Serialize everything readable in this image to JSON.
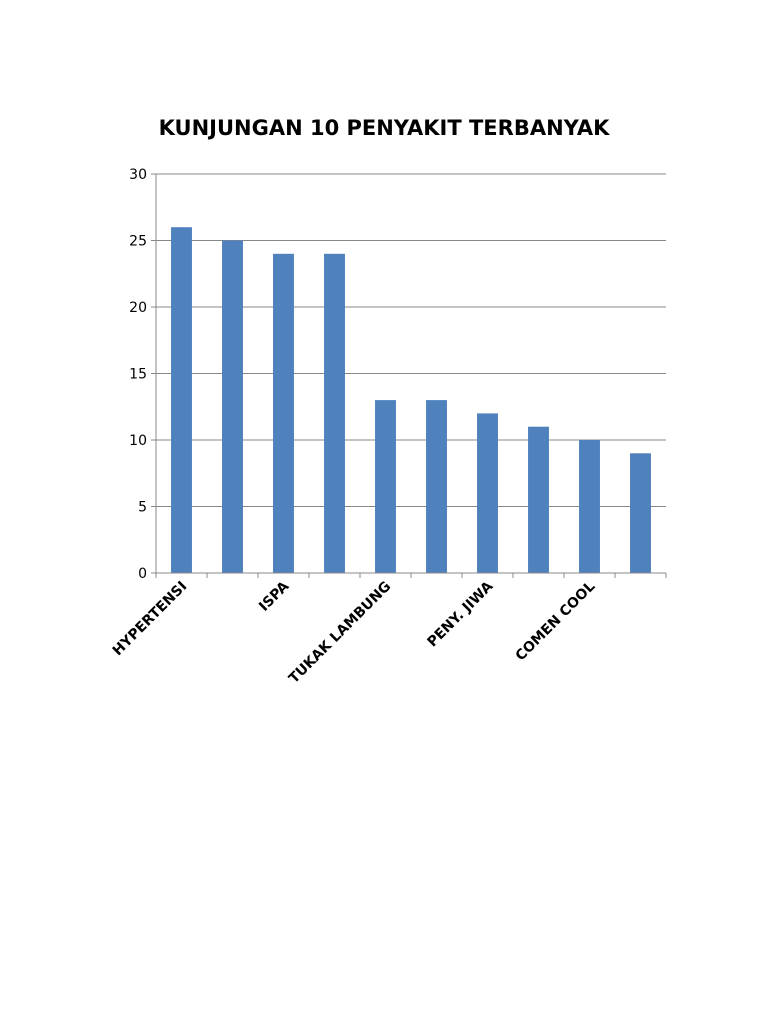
{
  "chart_data": {
    "type": "bar",
    "title": "KUNJUNGAN 10 PENYAKIT TERBANYAK",
    "xlabel": "",
    "ylabel": "",
    "categories": [
      "HYPERTENSI",
      "",
      "ISPA",
      "",
      "TUKAK LAMBUNG",
      "",
      "PENY. JIWA",
      "",
      "COMEN COOL",
      ""
    ],
    "values": [
      26,
      25,
      24,
      24,
      13,
      13,
      12,
      11,
      10,
      9
    ],
    "ylim": [
      0,
      30
    ],
    "yticks": [
      0,
      5,
      10,
      15,
      20,
      25,
      30
    ],
    "grid": true,
    "legend": "none",
    "bar_color": "#4f81bd",
    "grid_color": "#888888"
  }
}
